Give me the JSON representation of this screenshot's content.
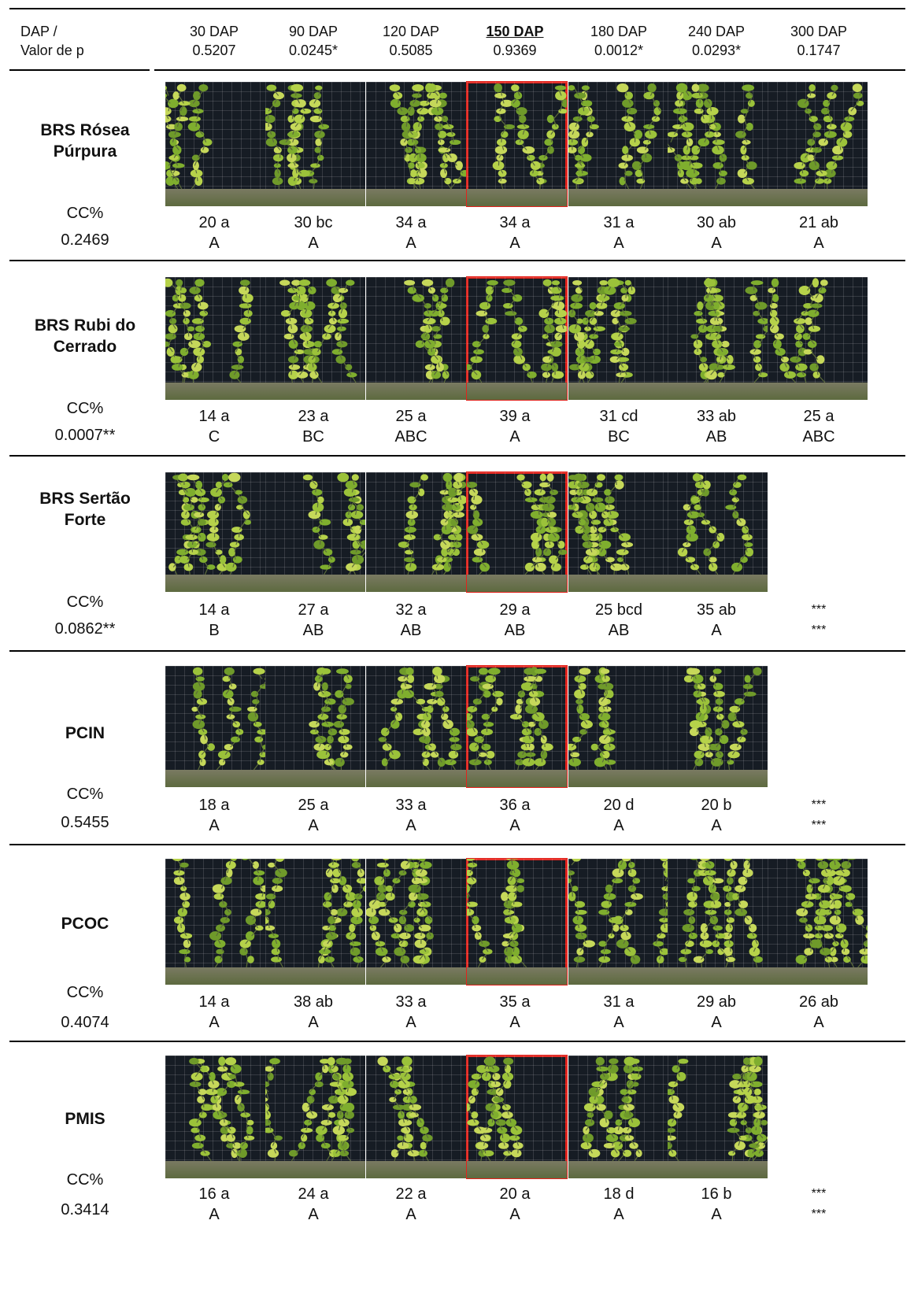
{
  "header": {
    "label_line1": "DAP /",
    "label_line2": "Valor de p",
    "columns": [
      {
        "dap": "30 DAP",
        "p": "0.5207"
      },
      {
        "dap": "90 DAP",
        "p": "0.0245*"
      },
      {
        "dap": "120 DAP",
        "p": "0.5085"
      },
      {
        "dap": "150 DAP",
        "p": "0.9369"
      },
      {
        "dap": "180 DAP",
        "p": "0.0012*"
      },
      {
        "dap": "240 DAP",
        "p": "0.0293*"
      },
      {
        "dap": "300 DAP",
        "p": "0.1747"
      }
    ]
  },
  "colors": {
    "highlight": "#e3231c",
    "rule": "#000000"
  },
  "rows": [
    {
      "name_line1": "BRS Rósea",
      "name_line2": "Púrpura",
      "cc_label": "CC%",
      "cc_p": "0.2469",
      "cells": [
        {
          "top": "20 a",
          "bottom": "A"
        },
        {
          "top": "30 bc",
          "bottom": "A"
        },
        {
          "top": "34 a",
          "bottom": "A"
        },
        {
          "top": "34 a",
          "bottom": "A"
        },
        {
          "top": "31 a",
          "bottom": "A"
        },
        {
          "top": "30 ab",
          "bottom": "A"
        },
        {
          "top": "21 ab",
          "bottom": "A"
        }
      ]
    },
    {
      "name_line1": "BRS Rubi do",
      "name_line2": "Cerrado",
      "cc_label": "CC%",
      "cc_p": "0.0007**",
      "cells": [
        {
          "top": "14 a",
          "bottom": "C"
        },
        {
          "top": "23 a",
          "bottom": "BC"
        },
        {
          "top": "25 a",
          "bottom": "ABC"
        },
        {
          "top": "39 a",
          "bottom": "A"
        },
        {
          "top": "31 cd",
          "bottom": "BC"
        },
        {
          "top": "33 ab",
          "bottom": "AB"
        },
        {
          "top": "25 a",
          "bottom": "ABC"
        }
      ]
    },
    {
      "name_line1": "BRS Sertão",
      "name_line2": "Forte",
      "cc_label": "CC%",
      "cc_p": "0.0862**",
      "cells": [
        {
          "top": "14 a",
          "bottom": "B"
        },
        {
          "top": "27 a",
          "bottom": "AB"
        },
        {
          "top": "32 a",
          "bottom": "AB"
        },
        {
          "top": "29 a",
          "bottom": "AB"
        },
        {
          "top": "25 bcd",
          "bottom": "AB"
        },
        {
          "top": "35 ab",
          "bottom": "A"
        },
        {
          "top": "***",
          "bottom": "***"
        }
      ]
    },
    {
      "name_line1": "PCIN",
      "name_line2": "",
      "cc_label": "CC%",
      "cc_p": "0.5455",
      "cells": [
        {
          "top": "18 a",
          "bottom": "A"
        },
        {
          "top": "25 a",
          "bottom": "A"
        },
        {
          "top": "33 a",
          "bottom": "A"
        },
        {
          "top": "36 a",
          "bottom": "A"
        },
        {
          "top": "20 d",
          "bottom": "A"
        },
        {
          "top": "20 b",
          "bottom": "A"
        },
        {
          "top": "***",
          "bottom": "***"
        }
      ]
    },
    {
      "name_line1": "PCOC",
      "name_line2": "",
      "cc_label": "CC%",
      "cc_p": "0.4074",
      "cells": [
        {
          "top": "14 a",
          "bottom": "A"
        },
        {
          "top": "38 ab",
          "bottom": "A"
        },
        {
          "top": "33 a",
          "bottom": "A"
        },
        {
          "top": "35 a",
          "bottom": "A"
        },
        {
          "top": "31 a",
          "bottom": "A"
        },
        {
          "top": "29 ab",
          "bottom": "A"
        },
        {
          "top": "26 ab",
          "bottom": "A"
        }
      ]
    },
    {
      "name_line1": "PMIS",
      "name_line2": "",
      "cc_label": "CC%",
      "cc_p": "0.3414",
      "cells": [
        {
          "top": "16 a",
          "bottom": "A"
        },
        {
          "top": "24 a",
          "bottom": "A"
        },
        {
          "top": "22 a",
          "bottom": "A"
        },
        {
          "top": "20 a",
          "bottom": "A"
        },
        {
          "top": "18  d",
          "bottom": "A"
        },
        {
          "top": "16 b",
          "bottom": "A"
        },
        {
          "top": "***",
          "bottom": "***"
        }
      ]
    }
  ]
}
